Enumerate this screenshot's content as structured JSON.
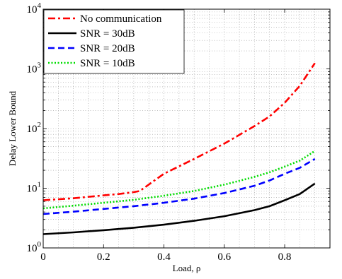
{
  "chart_data": {
    "type": "line",
    "title": "",
    "xlabel": "Load, ρ",
    "ylabel": "Delay Lower Bound",
    "xlim": [
      0,
      0.95
    ],
    "ylim": [
      1,
      10000
    ],
    "y_scale": "log",
    "grid": "dotted major and minor",
    "legend_position": "top-left",
    "x_ticks": [
      {
        "value": 0,
        "label": "0"
      },
      {
        "value": 0.2,
        "label": "0.2"
      },
      {
        "value": 0.4,
        "label": "0.4"
      },
      {
        "value": 0.6,
        "label": "0.6"
      },
      {
        "value": 0.8,
        "label": "0.8"
      }
    ],
    "y_ticks": [
      {
        "value": 1,
        "base": "10",
        "exp": "0"
      },
      {
        "value": 10,
        "base": "10",
        "exp": "1"
      },
      {
        "value": 100,
        "base": "10",
        "exp": "2"
      },
      {
        "value": 1000,
        "base": "10",
        "exp": "3"
      },
      {
        "value": 10000,
        "base": "10",
        "exp": "4"
      }
    ],
    "series": [
      {
        "name": "No communication",
        "color": "#ff0000",
        "dash": "dash-dot",
        "x": [
          0,
          0.1,
          0.2,
          0.25,
          0.3,
          0.32,
          0.4,
          0.5,
          0.6,
          0.7,
          0.75,
          0.8,
          0.85,
          0.9
        ],
        "y": [
          6.3,
          6.8,
          7.6,
          8.0,
          8.6,
          9.0,
          17.5,
          31,
          56,
          110,
          160,
          270,
          520,
          1250
        ]
      },
      {
        "name": "SNR = 30dB",
        "color": "#000000",
        "dash": "solid",
        "x": [
          0,
          0.1,
          0.2,
          0.3,
          0.4,
          0.5,
          0.6,
          0.7,
          0.75,
          0.8,
          0.85,
          0.9
        ],
        "y": [
          1.7,
          1.82,
          1.98,
          2.18,
          2.45,
          2.85,
          3.4,
          4.3,
          5.0,
          6.3,
          8.0,
          12
        ]
      },
      {
        "name": "SNR = 20dB",
        "color": "#0000ff",
        "dash": "dashed",
        "x": [
          0,
          0.1,
          0.2,
          0.3,
          0.4,
          0.5,
          0.6,
          0.7,
          0.75,
          0.8,
          0.85,
          0.9
        ],
        "y": [
          3.7,
          4.05,
          4.5,
          5.0,
          5.7,
          6.7,
          8.3,
          11,
          13.5,
          17.5,
          22,
          31
        ]
      },
      {
        "name": "SNR = 10dB",
        "color": "#00dd00",
        "dash": "dotted",
        "x": [
          0,
          0.1,
          0.2,
          0.3,
          0.4,
          0.5,
          0.6,
          0.7,
          0.75,
          0.8,
          0.85,
          0.9
        ],
        "y": [
          4.6,
          5.1,
          5.7,
          6.4,
          7.5,
          9.0,
          11.5,
          15.5,
          18.5,
          23,
          29,
          42
        ]
      }
    ]
  }
}
